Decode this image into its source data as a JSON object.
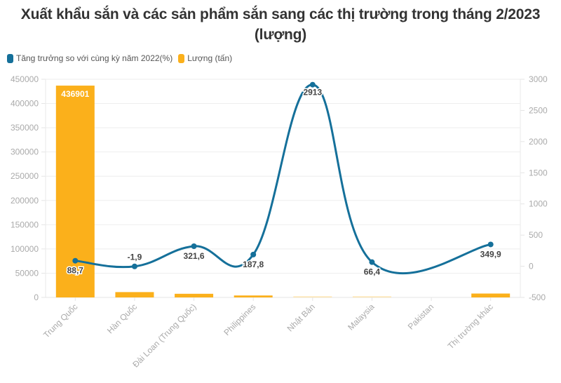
{
  "title": {
    "line1": "Xuất khẩu sắn và các sản phẩm sắn sang các thị trường trong tháng 2/2023",
    "line2": "(lượng)"
  },
  "legend": [
    {
      "label": "Tăng trưởng so với cùng kỳ năm 2022(%)",
      "color": "#15709a"
    },
    {
      "label": "Lượng (tấn)",
      "color": "#fbb01b"
    }
  ],
  "colors": {
    "bar": "#fbb01b",
    "line": "#15709a",
    "grid": "#eeeeee",
    "axis_text": "#aaaaaa",
    "label_text": "#444444"
  },
  "chart_data": {
    "type": "bar+line",
    "title": "Xuất khẩu sắn và các sản phẩm sắn sang các thị trường trong tháng 2/2023 (lượng)",
    "categories": [
      "Trung Quốc",
      "Hàn Quốc",
      "Đài Loan (Trung Quốc)",
      "Philippines",
      "Nhật Bản",
      "Malaysia",
      "Pakistan",
      "Thị trường khác"
    ],
    "series": [
      {
        "name": "Lượng (tấn)",
        "type": "bar",
        "axis": "left",
        "values": [
          436901,
          11000,
          7500,
          4000,
          1000,
          1000,
          0,
          8000
        ],
        "labels": [
          "436901",
          "",
          "",
          "",
          "",
          "",
          "",
          ""
        ]
      },
      {
        "name": "Tăng trưởng so với cùng kỳ năm 2022(%)",
        "type": "line",
        "axis": "right",
        "values": [
          88.7,
          -1.9,
          321.6,
          187.8,
          2913,
          66.4,
          null,
          349.9
        ],
        "labels": [
          "88,7",
          "-1,9",
          "321,6",
          "187,8",
          "2913",
          "66,4",
          "",
          "349,9"
        ]
      }
    ],
    "y_left": {
      "min": 0,
      "max": 450000,
      "ticks": [
        "0",
        "50000",
        "100000",
        "150000",
        "200000",
        "250000",
        "300000",
        "350000",
        "400000",
        "450000"
      ]
    },
    "y_right": {
      "min": -500,
      "max": 3000,
      "ticks": [
        "-500",
        "0",
        "500",
        "1000",
        "1500",
        "2000",
        "2500",
        "3000"
      ]
    },
    "xlabel": "",
    "ylabel": "",
    "grid": true,
    "legend_position": "top-left"
  }
}
